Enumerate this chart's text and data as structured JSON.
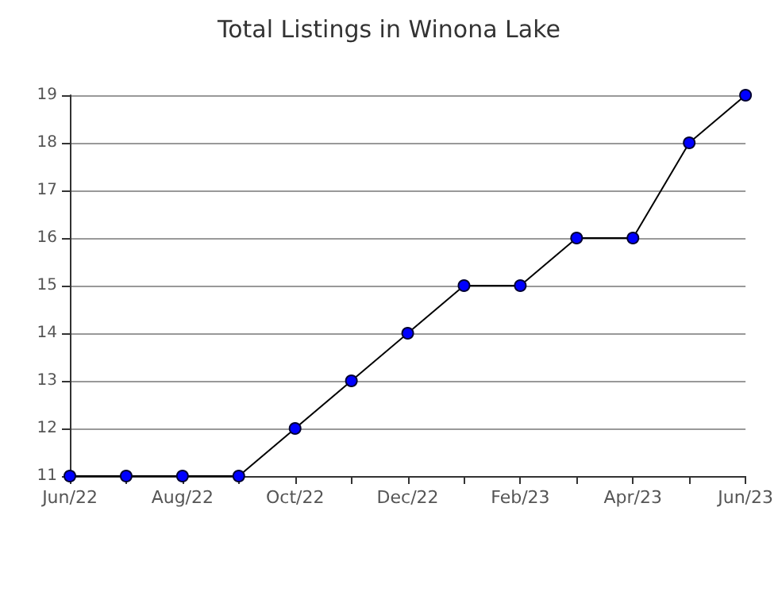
{
  "chart_data": {
    "type": "line",
    "title": "Total Listings in Winona Lake",
    "categories": [
      "Jun/22",
      null,
      "Aug/22",
      null,
      "Oct/22",
      null,
      "Dec/22",
      null,
      "Feb/23",
      null,
      "Apr/23",
      null,
      "Jun/23"
    ],
    "series": [
      {
        "color": "#0000ff",
        "values": [
          11,
          11,
          11,
          11,
          12,
          13,
          14,
          15,
          15,
          16,
          16,
          18,
          19
        ]
      }
    ],
    "ylim": [
      11,
      19
    ],
    "yticks": [
      11,
      12,
      13,
      14,
      15,
      16,
      17,
      18,
      19
    ],
    "grid": "y",
    "marker": "circle",
    "line_style": "solid"
  }
}
